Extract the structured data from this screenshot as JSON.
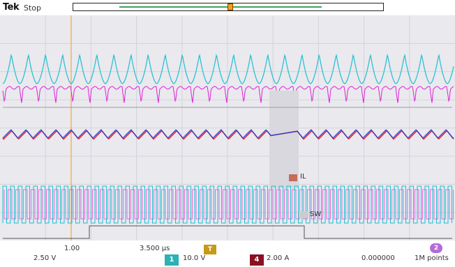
{
  "header": {
    "brand": "Tek",
    "acq_state": "Stop"
  },
  "waveform_labels": {
    "inductor_current": "IL",
    "switch_node": "SW"
  },
  "bottom": {
    "ch1_id": "1",
    "ch1_scale": "10.0 V",
    "ch4_id": "4",
    "ch4_scale": "2.00 A",
    "trigger_id": "T",
    "ch2_scale": "2.50 V",
    "timebase": "3.500 µs",
    "position_scale": "1.00",
    "trigger_delay": "0.000000",
    "record_length": "1M points",
    "math_id": "2"
  },
  "colors": {
    "ch1": "#1fbfd0",
    "ch2": "#e020d8",
    "ch3": "#2040d8",
    "ch4": "#e0243a",
    "trigger": "#f0a01a",
    "record_window": "#3aa655"
  }
}
